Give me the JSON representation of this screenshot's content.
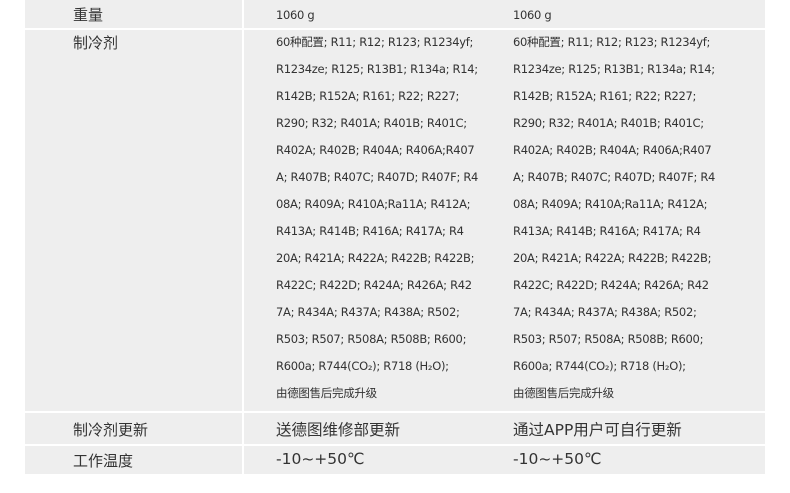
{
  "rows": {
    "weight": {
      "label": "重量",
      "a": "1060 g",
      "b": "1060 g"
    },
    "refrigerant": {
      "label": "制冷剂",
      "a": [
        "60种配置; R11; R12; R123; R1234yf;",
        "R1234ze; R125; R13B1; R134a; R14;",
        " R142B; R152A; R161; R22; R227;",
        "R290; R32; R401A; R401B; R401C;",
        "R402A; R402B; R404A; R406A;R407",
        "A; R407B; R407C; R407D; R407F; R4",
        "08A; R409A; R410A;Ra11A; R412A;",
        " R413A; R414B; R416A; R417A; R4",
        "20A; R421A; R422A; R422B; R422B;",
        " R422C; R422D; R424A; R426A; R42",
        "7A; R434A; R437A; R438A; R502;",
        "R503; R507; R508A; R508B; R600;",
        "R600a; R744(CO₂); R718 (H₂O);",
        " 由德图售后完成升级"
      ],
      "b": [
        "60种配置; R11; R12; R123; R1234yf;",
        "R1234ze; R125; R13B1; R134a; R14;",
        " R142B; R152A; R161; R22; R227;",
        "R290; R32; R401A; R401B; R401C;",
        "R402A; R402B; R404A; R406A;R407",
        "A; R407B; R407C; R407D; R407F; R4",
        "08A; R409A; R410A;Ra11A; R412A;",
        " R413A; R414B; R416A; R417A; R4",
        "20A; R421A; R422A; R422B; R422B;",
        " R422C; R422D; R424A; R426A; R42",
        "7A; R434A; R437A; R438A; R502;",
        "R503; R507; R508A; R508B; R600;",
        "R600a; R744(CO₂); R718 (H₂O);",
        " 由德图售后完成升级"
      ]
    },
    "update": {
      "label": "制冷剂更新",
      "a": "送德图维修部更新",
      "b": "通过APP用户可自行更新"
    },
    "temp": {
      "label": "工作温度",
      "a": "-10~+50℃",
      "b": "-10~+50℃"
    }
  }
}
